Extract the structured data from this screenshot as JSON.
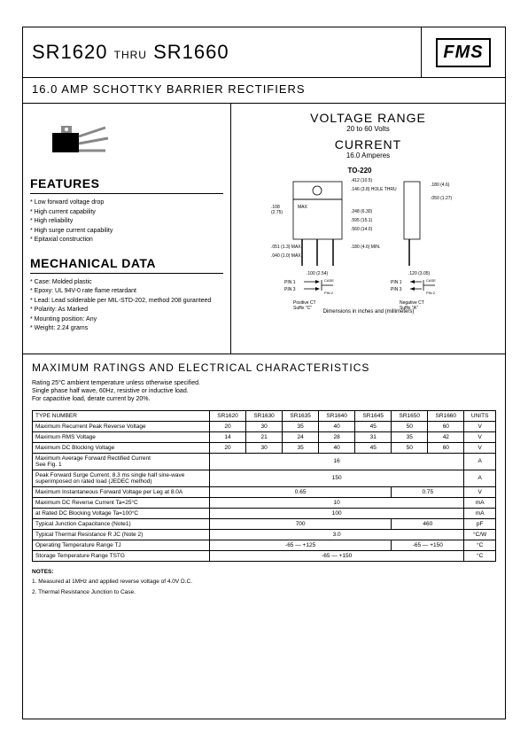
{
  "header": {
    "part_from": "SR1620",
    "thru": "THRU",
    "part_to": "SR1660",
    "logo": "FMS"
  },
  "subtitle": "16.0 AMP SCHOTTKY BARRIER RECTIFIERS",
  "features": {
    "title": "FEATURES",
    "items": [
      "Low forward voltage drop",
      "High current capability",
      "High reliability",
      "High surge current capability",
      "Epitaxial construction"
    ]
  },
  "mechanical": {
    "title": "MECHANICAL DATA",
    "items": [
      "Case: Molded plastic",
      "Epoxy: UL 94V-0 rate flame retardant",
      "Lead: Lead solderable per MIL-STD-202, method 208 guranteed",
      "Polarity: As Marked",
      "Mounting position: Any",
      "Weight: 2.24 grams"
    ]
  },
  "voltage": {
    "vr_label": "VOLTAGE RANGE",
    "vr_value": "20 to 60 Volts",
    "cur_label": "CURRENT",
    "cur_value": "16.0 Amperes",
    "pkg_label": "TO-220",
    "dim_note": "Dimensions in inches and (millimeters)",
    "pos_ct": "Positive CT Suffix \"C\"",
    "neg_ct": "Negative CT Suffix \"A\""
  },
  "ratings": {
    "title": "MAXIMUM RATINGS AND ELECTRICAL CHARACTERISTICS",
    "note1": "Rating 25°C ambient temperature unless otherwise specified.",
    "note2": "Single phase half wave, 60Hz, resistive or inductive load.",
    "note3": "For capacitive load, derate current by 20%.",
    "columns": [
      "TYPE NUMBER",
      "SR1620",
      "SR1630",
      "SR1635",
      "SR1640",
      "SR1645",
      "SR1650",
      "SR1660",
      "UNITS"
    ],
    "rows": [
      {
        "label": "Maximum Recurrent Peak Reverse Voltage",
        "cells": [
          "20",
          "30",
          "35",
          "40",
          "45",
          "50",
          "60"
        ],
        "unit": "V"
      },
      {
        "label": "Maximum RMS Voltage",
        "cells": [
          "14",
          "21",
          "24",
          "28",
          "31",
          "35",
          "42"
        ],
        "unit": "V"
      },
      {
        "label": "Maximum DC Blocking Voltage",
        "cells": [
          "20",
          "30",
          "35",
          "40",
          "45",
          "50",
          "60"
        ],
        "unit": "V"
      },
      {
        "label": "Maximum Average Forward Rectified Current\nSee Fig. 1",
        "span": "16",
        "unit": "A"
      },
      {
        "label": "Peak Forward Surge Current, 8.3 ms single half sine-wave\nsuperimposed on rated load (JEDEC method)",
        "span": "150",
        "unit": "A"
      },
      {
        "label": "Maximum Instantaneous Forward Voltage per Leg at 8.0A",
        "span_split": [
          "0.65",
          "0.75"
        ],
        "split_cols": [
          5,
          2
        ],
        "unit": "V"
      },
      {
        "label": "Maximum DC Reverse Current          Ta=25°C",
        "span": "10",
        "unit": "mA"
      },
      {
        "label": "at Rated DC Blocking Voltage          Ta=100°C",
        "span": "100",
        "unit": "mA"
      },
      {
        "label": "Typical Junction Capacitance (Note1)",
        "span_split": [
          "700",
          "460"
        ],
        "split_cols": [
          5,
          2
        ],
        "unit": "pF"
      },
      {
        "label": "Typical Thermal Resistance R JC (Note 2)",
        "span": "3.0",
        "unit": "°C/W"
      },
      {
        "label": "Operating Temperature Range TJ",
        "span_split": [
          "-65 — +125",
          "-65 — +150"
        ],
        "split_cols": [
          5,
          2
        ],
        "unit": "°C"
      },
      {
        "label": "Storage Temperature Range TSTG",
        "span": "-65 — +150",
        "unit": "°C"
      }
    ],
    "notes_hdr": "NOTES:",
    "footnote1": "1. Measured at 1MHz and applied reverse voltage of 4.0V D.C.",
    "footnote2": "2. Thermal Resistance Junction to Case."
  }
}
